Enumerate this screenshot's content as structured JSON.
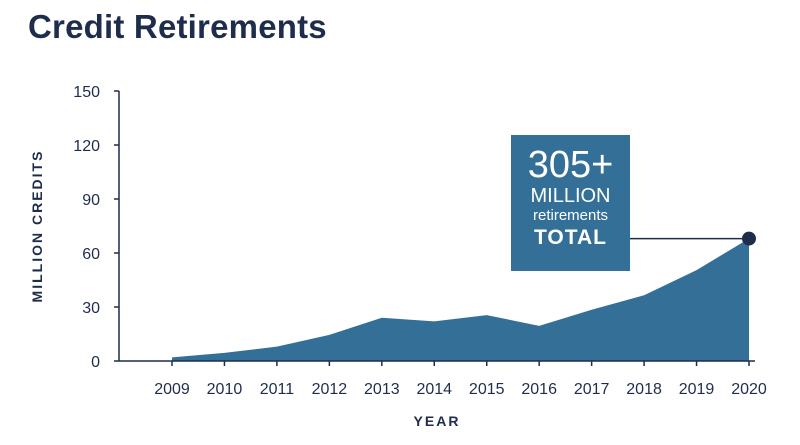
{
  "title": "Credit Retirements",
  "callout": {
    "big": "305+",
    "mid": "MILLION",
    "small": "retirements",
    "total": "TOTAL"
  },
  "colors": {
    "area": "#336f96",
    "text": "#1f2d4d",
    "axis": "#1f2d4d",
    "marker": "#1f2d4d"
  },
  "chart_data": {
    "type": "area",
    "title": "Credit Retirements",
    "xlabel": "YEAR",
    "ylabel": "MILLION CREDITS",
    "categories": [
      "2009",
      "2010",
      "2011",
      "2012",
      "2013",
      "2014",
      "2015",
      "2016",
      "2017",
      "2018",
      "2019",
      "2020"
    ],
    "series": [
      {
        "values": [
          2,
          4.5,
          8,
          14.5,
          24,
          22,
          25.5,
          19.5,
          28.5,
          36.5,
          50.5,
          68
        ]
      }
    ],
    "yticks": [
      0,
      30,
      60,
      90,
      120,
      150
    ],
    "ylim": [
      0,
      150
    ],
    "grid": false,
    "highlight_index": 11
  }
}
